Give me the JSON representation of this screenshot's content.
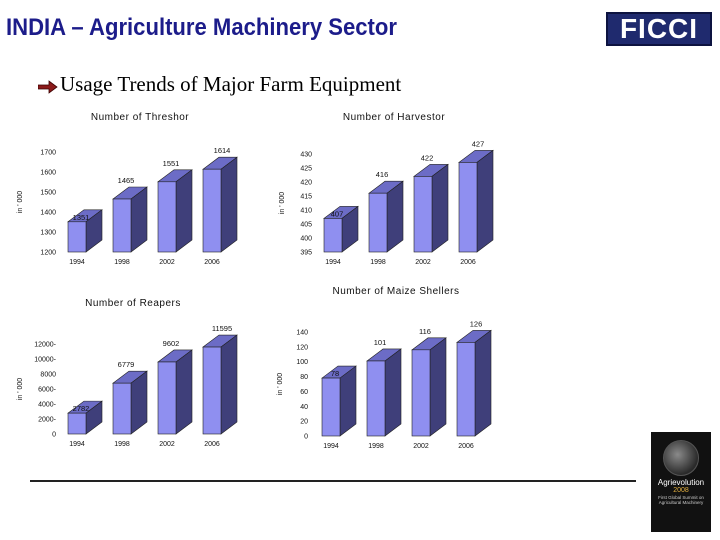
{
  "header": {
    "title": "INDIA – Agriculture Machinery Sector",
    "logo_text": "FICCI",
    "subtitle": "Usage Trends of Major Farm Equipment"
  },
  "badge": {
    "line1": "Agrievolution",
    "line2": "2008",
    "line3": "First Global Summit on Agricultural Machinery"
  },
  "colors": {
    "bar_front": "#8f8ff0",
    "bar_side": "#3f3f7a",
    "bar_top": "#6c6cc6",
    "title": "#1c1c8a"
  },
  "chart_data": [
    {
      "type": "bar",
      "title": "Number of Threshor",
      "ylabel": "in ' 000",
      "categories": [
        "1994",
        "1998",
        "2002",
        "2006"
      ],
      "values": [
        1351,
        1465,
        1551,
        1614
      ],
      "data_labels": [
        "1351",
        "1465",
        "1551",
        "1614"
      ],
      "ylim": [
        1200,
        1700
      ],
      "yticks": [
        "1200",
        "1300",
        "1400",
        "1500",
        "1600",
        "1700"
      ],
      "grid": false
    },
    {
      "type": "bar",
      "title": "Number of Harvestor",
      "ylabel": "in ' 000",
      "categories": [
        "1994",
        "1998",
        "2002",
        "2006"
      ],
      "values": [
        407,
        416,
        422,
        427
      ],
      "data_labels": [
        "407",
        "416",
        "422",
        "427"
      ],
      "ylim": [
        395,
        430
      ],
      "yticks": [
        "395",
        "400",
        "405",
        "410",
        "415",
        "420",
        "425",
        "430"
      ],
      "grid": false
    },
    {
      "type": "bar",
      "title": "Number of Reapers",
      "ylabel": "in ' 000",
      "categories": [
        "1994",
        "1998",
        "2002",
        "2006"
      ],
      "values": [
        2782,
        6779,
        9602,
        11595
      ],
      "data_labels": [
        "2782",
        "6779",
        "9602",
        "11595"
      ],
      "ylim": [
        0,
        12000
      ],
      "yticks": [
        "0",
        "2000-",
        "4000-",
        "6000-",
        "8000",
        "10000-",
        "12000-"
      ],
      "grid": false
    },
    {
      "type": "bar",
      "title": "Number of Maize Shellers",
      "ylabel": "in ' 000",
      "categories": [
        "1994",
        "1998",
        "2002",
        "2006"
      ],
      "values": [
        78,
        101,
        116,
        126
      ],
      "data_labels": [
        "78",
        "101",
        "116",
        "126"
      ],
      "ylim": [
        0,
        140
      ],
      "yticks": [
        "0",
        "20",
        "40",
        "60",
        "80",
        "100",
        "120",
        "140"
      ],
      "grid": false
    }
  ]
}
